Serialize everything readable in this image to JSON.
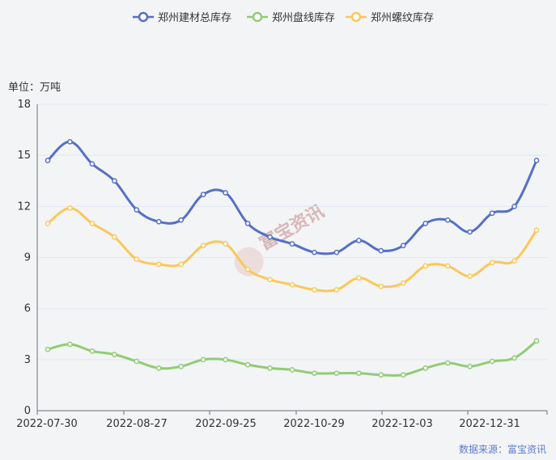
{
  "chart_data": {
    "type": "line",
    "unit_label": "单位：万吨",
    "source": "数据来源：富宝资讯",
    "watermark": "富宝资讯",
    "ylim": [
      0,
      18
    ],
    "yticks": [
      0,
      3,
      6,
      9,
      12,
      15,
      18
    ],
    "xtick_labels": [
      "2022-07-30",
      "2022-08-27",
      "2022-09-25",
      "2022-10-29",
      "2022-12-03",
      "2022-12-31"
    ],
    "grid": true,
    "legend_position": "top",
    "series": [
      {
        "name": "郑州建材总库存",
        "color": "#5470c6",
        "values": [
          14.7,
          15.8,
          14.5,
          13.5,
          11.8,
          11.1,
          11.2,
          12.7,
          12.8,
          11.0,
          10.2,
          9.8,
          9.3,
          9.3,
          10.0,
          9.4,
          9.7,
          11.0,
          11.2,
          10.5,
          11.6,
          12.0,
          14.7
        ]
      },
      {
        "name": "郑州盘线库存",
        "color": "#91cc75",
        "values": [
          3.6,
          3.9,
          3.5,
          3.3,
          2.9,
          2.5,
          2.6,
          3.0,
          3.0,
          2.7,
          2.5,
          2.4,
          2.2,
          2.2,
          2.2,
          2.1,
          2.1,
          2.5,
          2.8,
          2.6,
          2.9,
          3.1,
          4.1
        ]
      },
      {
        "name": "郑州螺纹库存",
        "color": "#fac858",
        "values": [
          11.0,
          11.9,
          11.0,
          10.2,
          8.9,
          8.6,
          8.6,
          9.7,
          9.8,
          8.3,
          7.7,
          7.4,
          7.1,
          7.1,
          7.8,
          7.3,
          7.5,
          8.5,
          8.5,
          7.9,
          8.7,
          8.8,
          10.6
        ]
      }
    ]
  }
}
